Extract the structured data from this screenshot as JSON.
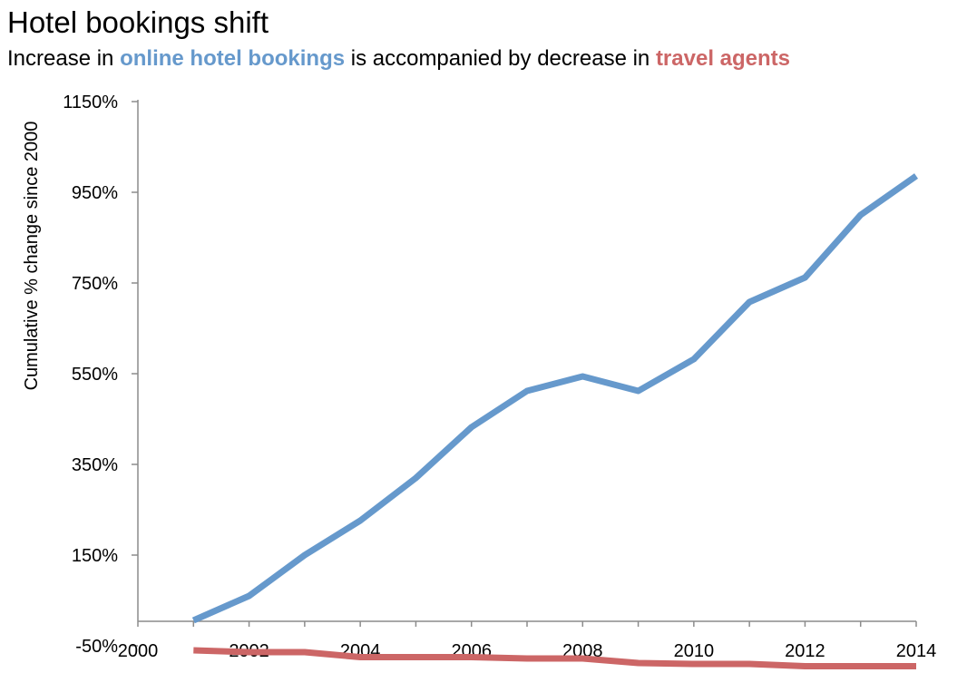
{
  "chart_data": {
    "type": "line",
    "title": "Hotel bookings shift",
    "subtitle": {
      "prefix": "Increase in ",
      "highlight1": "online hotel bookings",
      "middle": " is accompanied by decrease in ",
      "highlight2": "travel agents"
    },
    "ylabel": "Cumulative % change since 2000",
    "xlabel": "",
    "ylim": [
      -50,
      1150
    ],
    "xlim": [
      2000,
      2014
    ],
    "yticks": [
      -50,
      150,
      350,
      550,
      750,
      950,
      1150
    ],
    "ytick_labels": [
      "-50%",
      "150%",
      "350%",
      "550%",
      "750%",
      "950%",
      "1150%"
    ],
    "xticks": [
      2000,
      2002,
      2004,
      2006,
      2008,
      2010,
      2012,
      2014
    ],
    "xtick_labels": [
      "2000",
      "2002",
      "2004",
      "2006",
      "2008",
      "2010",
      "2012",
      "2014"
    ],
    "grid": false,
    "legend": "none",
    "series": [
      {
        "color": "#6699cc",
        "x": [
          2001,
          2002,
          2003,
          2004,
          2005,
          2006,
          2007,
          2008,
          2009,
          2010,
          2011,
          2012,
          2013,
          2014
        ],
        "y": [
          6,
          60,
          150,
          226,
          320,
          432,
          512,
          544,
          512,
          582,
          708,
          762,
          900,
          986
        ]
      },
      {
        "color": "#cc6666",
        "x": [
          2001,
          2002,
          2003,
          2004,
          2005,
          2006,
          2007,
          2008,
          2009,
          2010,
          2011,
          2012,
          2013,
          2014
        ],
        "y": [
          -60,
          -64,
          -64,
          -75,
          -75,
          -75,
          -78,
          -78,
          -88,
          -90,
          -90,
          -95,
          -95,
          -95
        ]
      }
    ]
  }
}
